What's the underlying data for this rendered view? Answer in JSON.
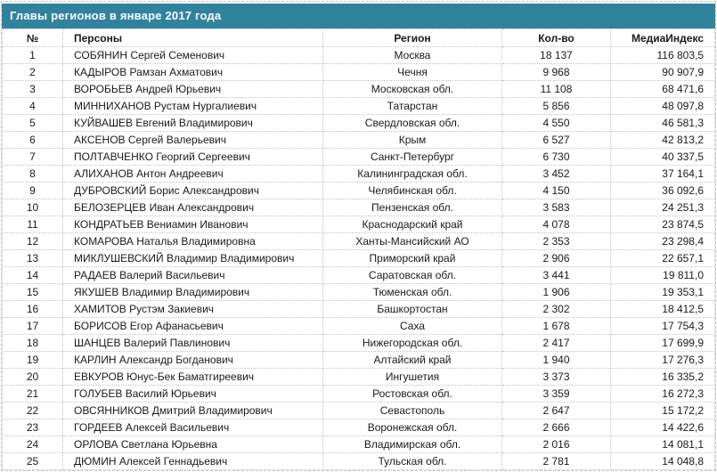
{
  "title": "Главы регионов в январе 2017 года",
  "colors": {
    "title_bar_bg": "#30839e",
    "title_text": "#ffffff",
    "cell_border": "#c3c3c3",
    "body_text": "#1a1a1a"
  },
  "table": {
    "columns": [
      {
        "key": "num",
        "label": "№"
      },
      {
        "key": "person",
        "label": "Персоны"
      },
      {
        "key": "region",
        "label": "Регион"
      },
      {
        "key": "count",
        "label": "Кол-во"
      },
      {
        "key": "mediaindex",
        "label": "МедиаИндекс"
      }
    ],
    "rows": [
      [
        "1",
        "СОБЯНИН Сергей Семенович",
        "Москва",
        "18 137",
        "116 803,5"
      ],
      [
        "2",
        "КАДЫРОВ Рамзан Ахматович",
        "Чечня",
        "9 968",
        "90 907,9"
      ],
      [
        "3",
        "ВОРОБЬЕВ Андрей Юрьевич",
        "Московская обл.",
        "11 108",
        "68 471,6"
      ],
      [
        "4",
        "МИННИХАНОВ Рустам Нургалиевич",
        "Татарстан",
        "5 856",
        "48 097,8"
      ],
      [
        "5",
        "КУЙВАШЕВ Евгений Владимирович",
        "Свердловская обл.",
        "4 550",
        "46 581,3"
      ],
      [
        "6",
        "АКСЕНОВ Сергей Валерьевич",
        "Крым",
        "6 527",
        "42 813,2"
      ],
      [
        "7",
        "ПОЛТАВЧЕНКО Георгий Сергеевич",
        "Санкт-Петербург",
        "6 730",
        "40 337,5"
      ],
      [
        "8",
        "АЛИХАНОВ Антон Андреевич",
        "Калининградская обл.",
        "3 452",
        "37 164,1"
      ],
      [
        "9",
        "ДУБРОВСКИЙ Борис Александрович",
        "Челябинская обл.",
        "4 150",
        "36 092,6"
      ],
      [
        "10",
        "БЕЛОЗЕРЦЕВ Иван Александрович",
        "Пензенская обл.",
        "3 583",
        "24 251,3"
      ],
      [
        "11",
        "КОНДРАТЬЕВ Вениамин Иванович",
        "Краснодарский край",
        "4 078",
        "23 874,5"
      ],
      [
        "12",
        "КОМАРОВА Наталья Владимировна",
        "Ханты-Мансийский АО",
        "2 353",
        "23 298,4"
      ],
      [
        "13",
        "МИКЛУШЕВСКИЙ Владимир Владимирович",
        "Приморский край",
        "2 906",
        "22 657,1"
      ],
      [
        "14",
        "РАДАЕВ Валерий Васильевич",
        "Саратовская обл.",
        "3 441",
        "19 811,0"
      ],
      [
        "15",
        "ЯКУШЕВ Владимир Владимирович",
        "Тюменская обл.",
        "1 906",
        "19 353,1"
      ],
      [
        "16",
        "ХАМИТОВ Рустэм Закиевич",
        "Башкортостан",
        "2 302",
        "18 412,5"
      ],
      [
        "17",
        "БОРИСОВ Егор Афанасьевич",
        "Саха",
        "1 678",
        "17 754,3"
      ],
      [
        "18",
        "ШАНЦЕВ Валерий Павлинович",
        "Нижегородская обл.",
        "2 417",
        "17 699,9"
      ],
      [
        "19",
        "КАРЛИН Александр Богданович",
        "Алтайский край",
        "1 940",
        "17 276,3"
      ],
      [
        "20",
        "ЕВКУРОВ Юнус-Бек Баматгиреевич",
        "Ингушетия",
        "3 373",
        "16 335,2"
      ],
      [
        "21",
        "ГОЛУБЕВ Василий Юрьевич",
        "Ростовская обл.",
        "3 359",
        "16 272,3"
      ],
      [
        "22",
        "ОВСЯННИКОВ Дмитрий Владимирович",
        "Севастополь",
        "2 647",
        "15 172,2"
      ],
      [
        "23",
        "ГОРДЕЕВ Алексей Васильевич",
        "Воронежская обл.",
        "2 666",
        "14 422,6"
      ],
      [
        "24",
        "ОРЛОВА Светлана Юрьевна",
        "Владимирская обл.",
        "2 016",
        "14 081,1"
      ],
      [
        "25",
        "ДЮМИН Алексей Геннадьевич",
        "Тульская обл.",
        "2 781",
        "14 048,8"
      ]
    ]
  }
}
